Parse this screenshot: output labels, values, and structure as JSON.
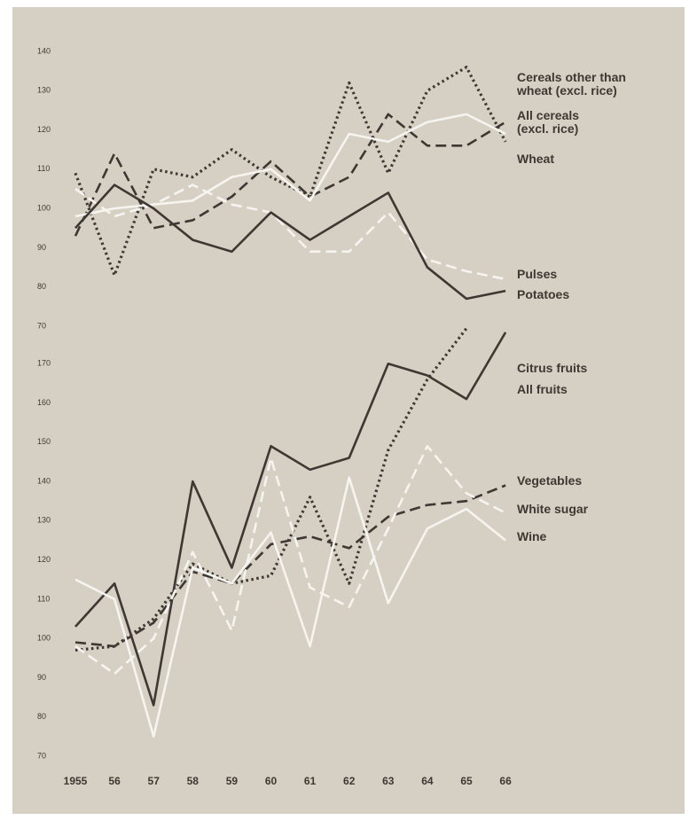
{
  "chart_data": {
    "type": "line",
    "categories": [
      "1955",
      "56",
      "57",
      "58",
      "59",
      "60",
      "61",
      "62",
      "63",
      "64",
      "65",
      "66"
    ],
    "panels": [
      {
        "ylim": [
          70,
          140
        ],
        "yticks": [
          70,
          80,
          90,
          100,
          110,
          120,
          130,
          140
        ],
        "series": [
          {
            "name": "Cereals other than\nwheat (excl. rice)",
            "color": "#3d3833",
            "style": "dotted",
            "values": [
              109,
              83,
              110,
              108,
              115,
              108,
              103,
              132,
              109,
              130,
              136,
              117
            ]
          },
          {
            "name": "All cereals\n(excl. rice)",
            "color": "#3d3833",
            "style": "dashed",
            "values": [
              93,
              114,
              95,
              97,
              103,
              112,
              103,
              108,
              124,
              116,
              116,
              122
            ]
          },
          {
            "name": "Wheat",
            "color": "#f6f4f0",
            "style": "solid",
            "values": [
              98,
              100,
              101,
              102,
              108,
              110,
              102,
              119,
              117,
              122,
              124,
              119
            ]
          },
          {
            "name": "Pulses",
            "color": "#f6f4f0",
            "style": "dashed",
            "values": [
              105,
              98,
              101,
              106,
              101,
              99,
              89,
              89,
              99,
              87,
              84,
              82
            ]
          },
          {
            "name": "Potatoes",
            "color": "#3d3833",
            "style": "solid",
            "values": [
              95,
              106,
              100,
              92,
              89,
              99,
              92,
              98,
              104,
              85,
              77,
              79
            ]
          }
        ]
      },
      {
        "ylim": [
          70,
          180
        ],
        "yticks": [
          70,
          80,
          90,
          100,
          110,
          120,
          130,
          140,
          150,
          160,
          170
        ],
        "series": [
          {
            "name": "Citrus fruits",
            "color": "#3d3833",
            "style": "dotted",
            "values": [
              97,
              98,
              105,
              119,
              114,
              116,
              136,
              114,
              148,
              166,
              179,
              null
            ]
          },
          {
            "name": "All fruits",
            "color": "#3d3833",
            "style": "solid",
            "values": [
              103,
              114,
              83,
              140,
              118,
              149,
              143,
              146,
              170,
              167,
              161,
              178
            ]
          },
          {
            "name": "Vegetables",
            "color": "#3d3833",
            "style": "dashed",
            "values": [
              99,
              98,
              104,
              117,
              114,
              124,
              126,
              123,
              131,
              134,
              135,
              139
            ]
          },
          {
            "name": "White sugar",
            "color": "#f6f4f0",
            "style": "dashed",
            "values": [
              98,
              91,
              100,
              122,
              102,
              146,
              113,
              108,
              128,
              149,
              137,
              132
            ]
          },
          {
            "name": "Wine",
            "color": "#f6f4f0",
            "style": "solid",
            "values": [
              115,
              110,
              75,
              118,
              114,
              127,
              98,
              141,
              109,
              128,
              133,
              125
            ]
          }
        ]
      }
    ]
  }
}
